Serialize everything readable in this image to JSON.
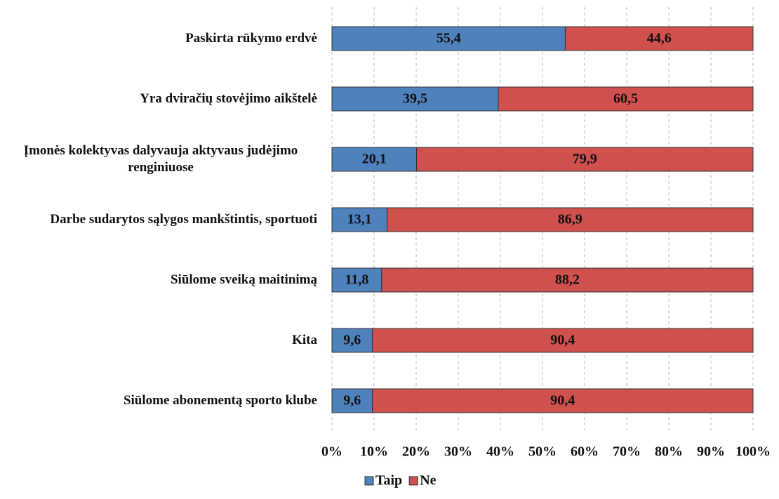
{
  "chart_data": {
    "type": "stacked_bar_horizontal",
    "categories": [
      "Paskirta rūkymo erdvė",
      "Yra dviračių stovėjimo aikštelė",
      "Įmonės kolektyvas dalyvauja aktyvaus judėjimo renginiuose",
      "Darbe sudarytos sąlygos mankštintis, sportuoti",
      "Siūlome sveiką maitinimą",
      "Kita",
      "Siūlome abonementą sporto klube"
    ],
    "series": [
      {
        "name": "Taip",
        "color": "#4f81bd",
        "values": [
          55.4,
          39.5,
          20.1,
          13.1,
          11.8,
          9.6,
          9.6
        ],
        "value_labels": [
          "55,4",
          "39,5",
          "20,1",
          "13,1",
          "11,8",
          "9,6",
          "9,6"
        ]
      },
      {
        "name": "Ne",
        "color": "#d0504d",
        "values": [
          44.6,
          60.5,
          79.9,
          86.9,
          88.2,
          90.4,
          90.4
        ],
        "value_labels": [
          "44,6",
          "60,5",
          "79,9",
          "86,9",
          "88,2",
          "90,4",
          "90,4"
        ]
      }
    ],
    "xlim": [
      0,
      100
    ],
    "xticks": [
      {
        "value": 0,
        "label": "0%"
      },
      {
        "value": 10,
        "label": "10%"
      },
      {
        "value": 20,
        "label": "20%"
      },
      {
        "value": 30,
        "label": "30%"
      },
      {
        "value": 40,
        "label": "40%"
      },
      {
        "value": 50,
        "label": "50%"
      },
      {
        "value": 60,
        "label": "60%"
      },
      {
        "value": 70,
        "label": "70%"
      },
      {
        "value": 80,
        "label": "80%"
      },
      {
        "value": 90,
        "label": "90%"
      },
      {
        "value": 100,
        "label": "100%"
      }
    ],
    "grid": true,
    "legend": "bottom"
  }
}
